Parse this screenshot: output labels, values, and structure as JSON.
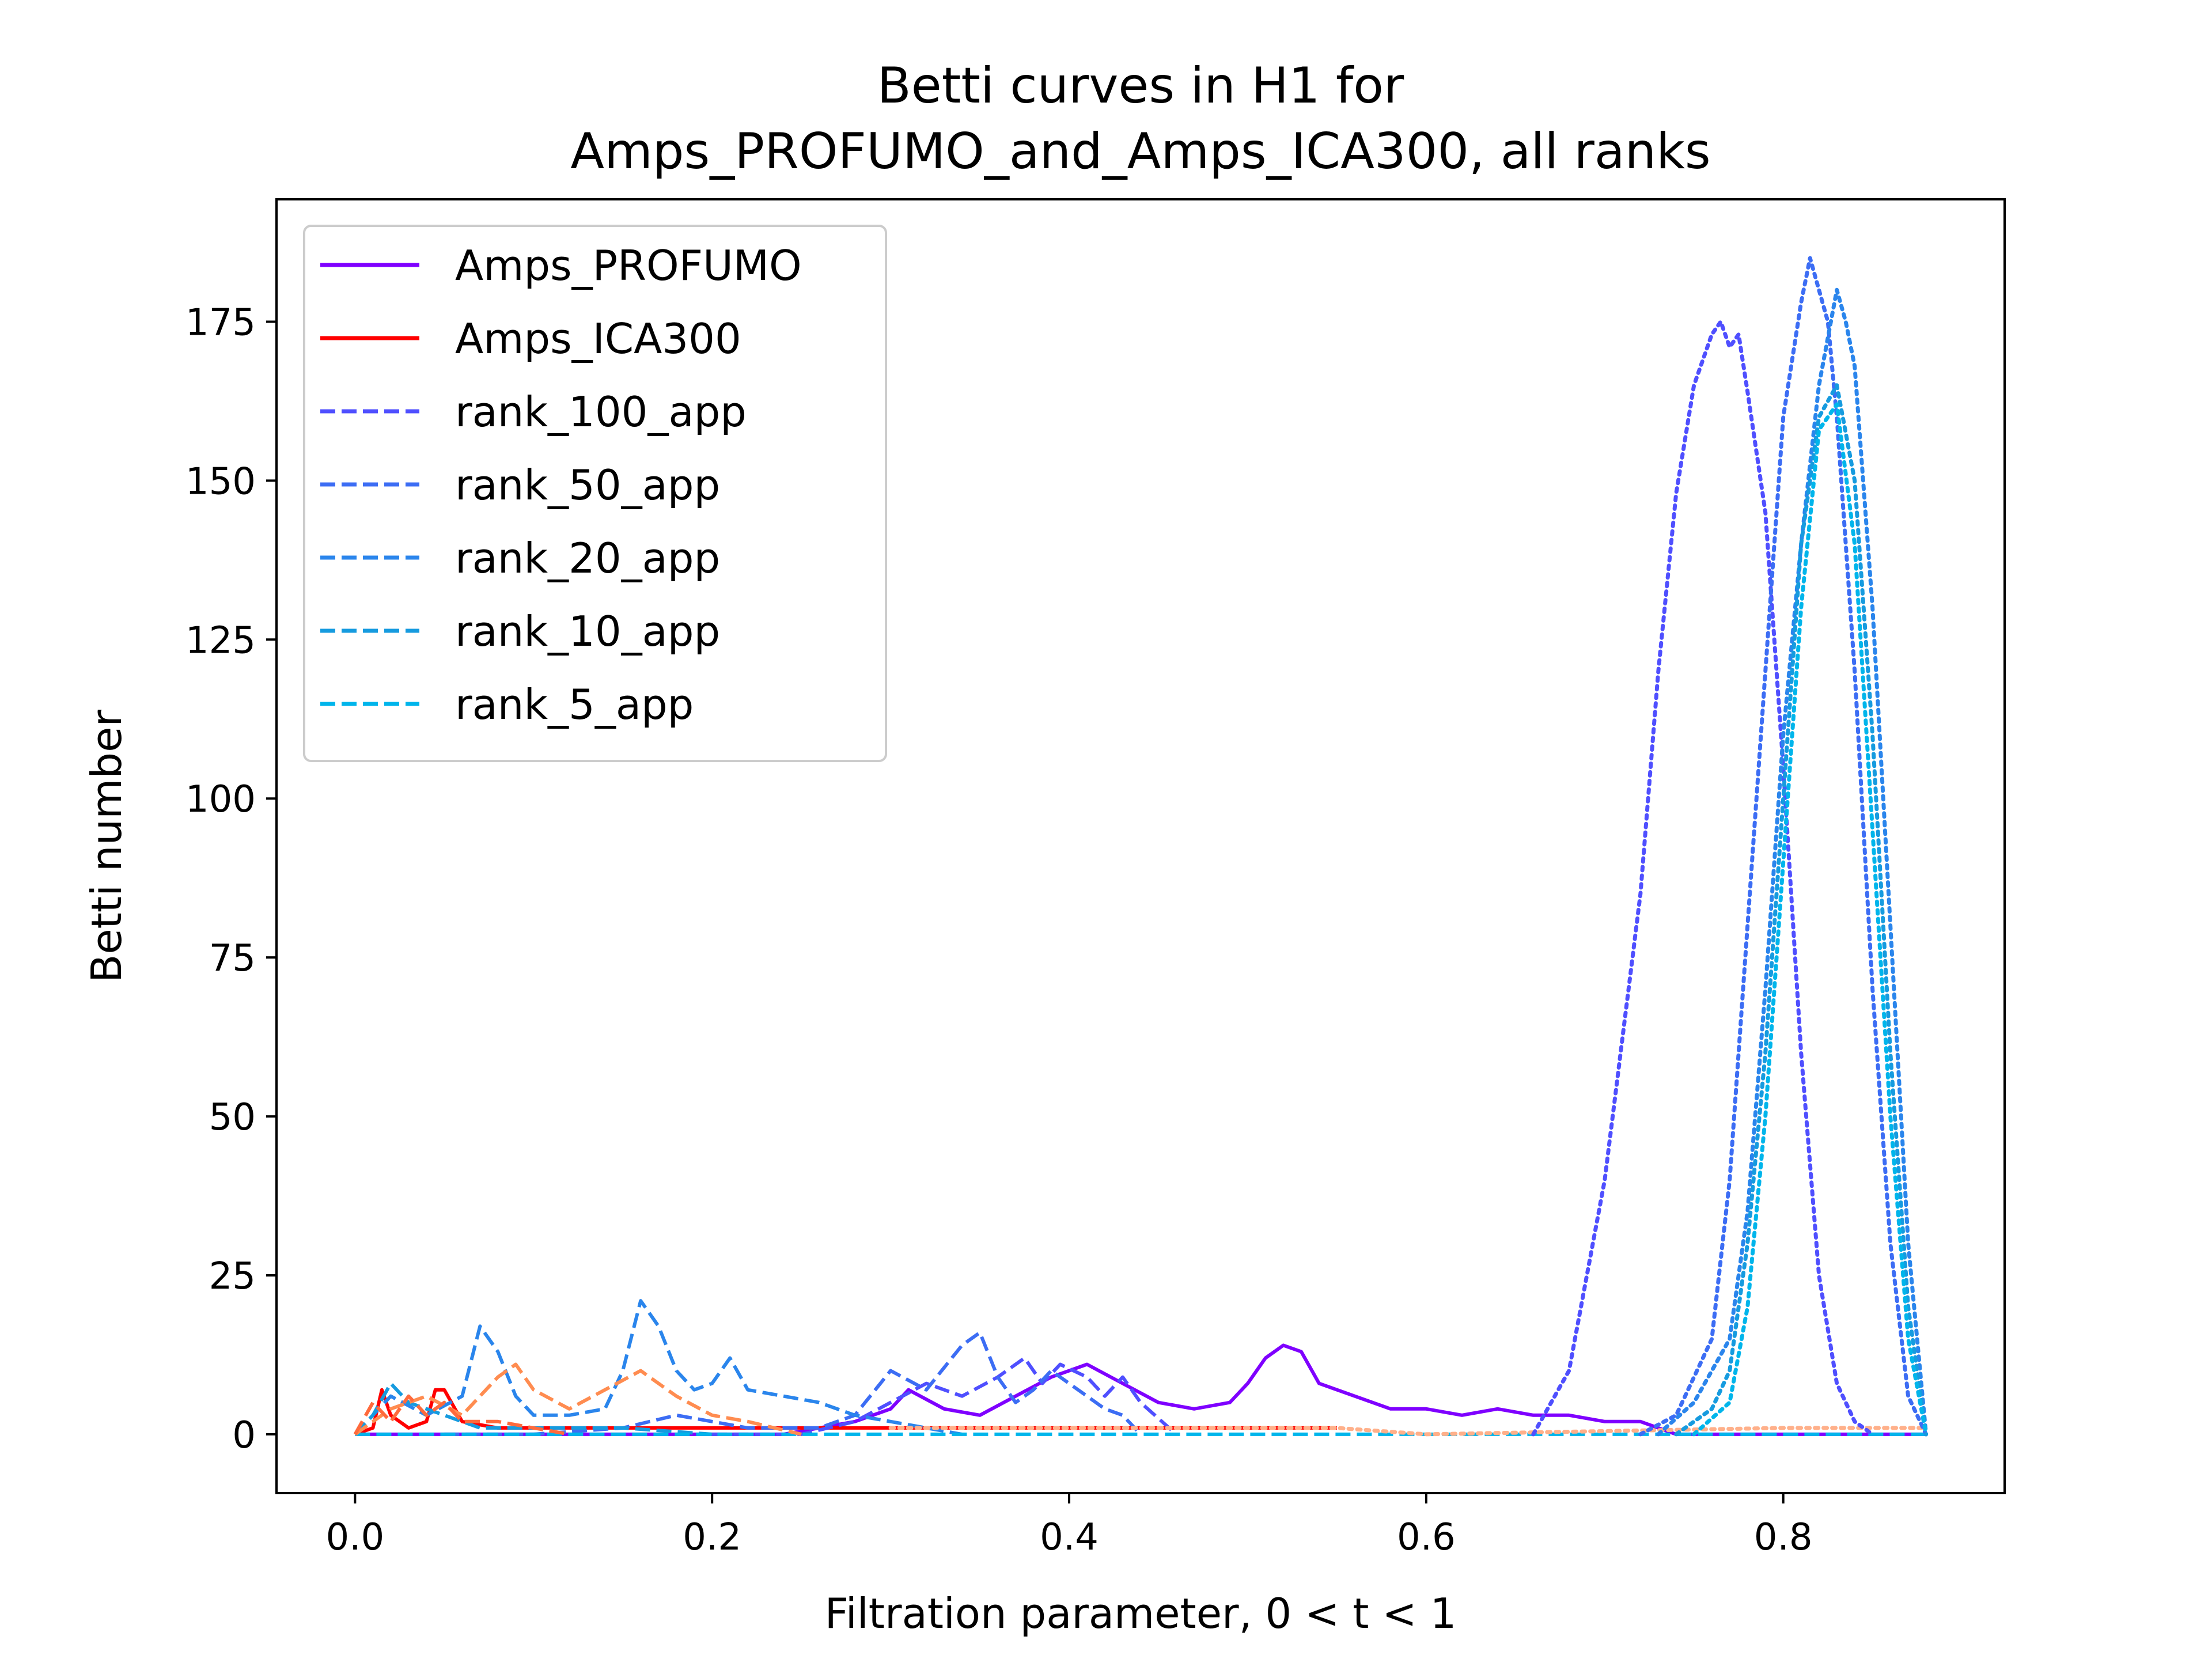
{
  "chart_data": {
    "type": "line",
    "title": "Betti curves in H1 for",
    "subtitle": "Amps_PROFUMO_and_Amps_ICA300, all ranks",
    "xlabel": "Filtration parameter, 0 < t < 1",
    "ylabel": "Betti number",
    "xlim": [
      -0.044,
      0.924
    ],
    "ylim": [
      -9.25,
      194.25
    ],
    "xticks": [
      0.0,
      0.2,
      0.4,
      0.6,
      0.8
    ],
    "xtick_labels": [
      "0.0",
      "0.2",
      "0.4",
      "0.6",
      "0.8"
    ],
    "yticks": [
      0,
      25,
      50,
      75,
      100,
      125,
      150,
      175
    ],
    "ytick_labels": [
      "0",
      "25",
      "50",
      "75",
      "100",
      "125",
      "150",
      "175"
    ],
    "grid": false,
    "legend_position": "top-left",
    "series": [
      {
        "name": "Amps_PROFUMO",
        "color": "#7f00ff",
        "style": "solid",
        "in_legend": true,
        "x": [
          0.0,
          0.05,
          0.1,
          0.15,
          0.2,
          0.24,
          0.26,
          0.28,
          0.3,
          0.31,
          0.33,
          0.35,
          0.37,
          0.39,
          0.41,
          0.43,
          0.45,
          0.47,
          0.49,
          0.5,
          0.51,
          0.52,
          0.53,
          0.54,
          0.56,
          0.58,
          0.6,
          0.62,
          0.64,
          0.66,
          0.68,
          0.7,
          0.72,
          0.73,
          0.74,
          0.76,
          0.8,
          0.85,
          0.88
        ],
        "y": [
          0,
          0,
          0,
          0,
          0,
          0,
          1,
          2,
          4,
          7,
          4,
          3,
          6,
          9,
          11,
          8,
          5,
          4,
          5,
          8,
          12,
          14,
          13,
          8,
          6,
          4,
          4,
          3,
          4,
          3,
          3,
          2,
          2,
          1,
          0,
          0,
          0,
          0,
          0
        ]
      },
      {
        "name": "Amps_ICA300",
        "color": "#ff0000",
        "style": "solid",
        "in_legend": true,
        "x": [
          0.0,
          0.01,
          0.015,
          0.02,
          0.03,
          0.04,
          0.045,
          0.05,
          0.06,
          0.08,
          0.1,
          0.15,
          0.2,
          0.25,
          0.3,
          0.4,
          0.5,
          0.55
        ],
        "y": [
          0,
          1,
          7,
          3,
          1,
          2,
          7,
          7,
          2,
          1,
          1,
          1,
          1,
          1,
          1,
          1,
          1,
          1
        ]
      },
      {
        "name": "rank_100_app",
        "color": "#4f4fff",
        "style": "dashed",
        "in_legend": true,
        "x": [
          0.2,
          0.25,
          0.28,
          0.3,
          0.32,
          0.34,
          0.36,
          0.375,
          0.385,
          0.395,
          0.41,
          0.42,
          0.43,
          0.44,
          0.46
        ],
        "y": [
          0,
          0,
          2,
          5,
          8,
          6,
          9,
          12,
          8,
          11,
          9,
          6,
          9,
          5,
          0
        ]
      },
      {
        "name": "rank_50_app",
        "color": "#3c6df4",
        "style": "dashed",
        "in_legend": true,
        "x": [
          0.05,
          0.1,
          0.15,
          0.18,
          0.2,
          0.22,
          0.24,
          0.26,
          0.28,
          0.3,
          0.32,
          0.34,
          0.35,
          0.36,
          0.37,
          0.38,
          0.39,
          0.4,
          0.41,
          0.42,
          0.43,
          0.44
        ],
        "y": [
          0,
          0,
          1,
          3,
          2,
          1,
          1,
          1,
          3,
          10,
          7,
          14,
          16,
          9,
          5,
          7,
          10,
          8,
          6,
          4,
          3,
          0
        ]
      },
      {
        "name": "rank_20_app",
        "color": "#2a85ec",
        "style": "dashed",
        "in_legend": true,
        "x": [
          0.0,
          0.02,
          0.04,
          0.06,
          0.07,
          0.08,
          0.09,
          0.1,
          0.12,
          0.14,
          0.15,
          0.16,
          0.17,
          0.18,
          0.19,
          0.2,
          0.21,
          0.22,
          0.24,
          0.26,
          0.28,
          0.3,
          0.32,
          0.34
        ],
        "y": [
          0,
          6,
          3,
          6,
          17,
          13,
          6,
          3,
          3,
          4,
          10,
          21,
          17,
          10,
          7,
          8,
          12,
          7,
          6,
          5,
          3,
          2,
          1,
          0
        ]
      },
      {
        "name": "rank_10_app",
        "color": "#169bdf",
        "style": "dashed",
        "in_legend": true,
        "x": [
          0.0,
          0.01,
          0.02,
          0.03,
          0.05,
          0.07,
          0.1,
          0.15,
          0.2
        ],
        "y": [
          0,
          3,
          8,
          5,
          3,
          1,
          1,
          1,
          0
        ]
      },
      {
        "name": "rank_5_app",
        "color": "#00b5eb",
        "style": "dashed",
        "in_legend": true,
        "x": [
          0.0,
          0.2,
          0.4,
          0.6,
          0.8,
          0.88
        ],
        "y": [
          0,
          0,
          0,
          0,
          0,
          0
        ]
      },
      {
        "name": "",
        "color": "#ff8c50",
        "style": "dashed",
        "in_legend": false,
        "x": [
          0.0,
          0.02,
          0.04,
          0.06,
          0.08,
          0.09,
          0.1,
          0.12,
          0.14,
          0.16,
          0.18,
          0.2,
          0.22,
          0.25
        ],
        "y": [
          0,
          4,
          6,
          3,
          9,
          11,
          7,
          4,
          7,
          10,
          6,
          3,
          2,
          0
        ]
      },
      {
        "name": "",
        "color": "#ff6a3c",
        "style": "dashed",
        "in_legend": false,
        "x": [
          0.0,
          0.01,
          0.02,
          0.03,
          0.04,
          0.05,
          0.06,
          0.08,
          0.1,
          0.12
        ],
        "y": [
          0,
          5,
          2,
          6,
          3,
          5,
          2,
          2,
          1,
          0
        ]
      },
      {
        "name": "",
        "color": "#ffb08a",
        "style": "dotted",
        "in_legend": false,
        "x": [
          0.3,
          0.4,
          0.5,
          0.55,
          0.6,
          0.8,
          0.88
        ],
        "y": [
          1,
          1,
          1,
          1,
          0,
          1,
          1
        ]
      },
      {
        "name": "",
        "color": "#4f4fff",
        "style": "dotted",
        "in_legend": false,
        "x": [
          0.66,
          0.68,
          0.7,
          0.72,
          0.73,
          0.74,
          0.75,
          0.76,
          0.765,
          0.77,
          0.775,
          0.78,
          0.79,
          0.8,
          0.81,
          0.82,
          0.83,
          0.84,
          0.85
        ],
        "y": [
          0,
          10,
          40,
          85,
          120,
          148,
          165,
          173,
          175,
          171,
          173,
          164,
          145,
          105,
          60,
          25,
          8,
          2,
          0
        ]
      },
      {
        "name": "",
        "color": "#3c6df4",
        "style": "dotted",
        "in_legend": false,
        "x": [
          0.72,
          0.74,
          0.76,
          0.77,
          0.78,
          0.79,
          0.8,
          0.81,
          0.815,
          0.82,
          0.825,
          0.83,
          0.84,
          0.85,
          0.86,
          0.87,
          0.88
        ],
        "y": [
          0,
          3,
          15,
          40,
          80,
          120,
          160,
          178,
          185,
          180,
          175,
          160,
          120,
          70,
          30,
          6,
          0
        ]
      },
      {
        "name": "",
        "color": "#2a85ec",
        "style": "dotted",
        "in_legend": false,
        "x": [
          0.73,
          0.75,
          0.77,
          0.78,
          0.79,
          0.8,
          0.81,
          0.82,
          0.83,
          0.835,
          0.84,
          0.85,
          0.86,
          0.87,
          0.88
        ],
        "y": [
          0,
          5,
          15,
          35,
          70,
          110,
          140,
          165,
          180,
          175,
          168,
          130,
          80,
          30,
          0
        ]
      },
      {
        "name": "",
        "color": "#169bdf",
        "style": "dotted",
        "in_legend": false,
        "x": [
          0.74,
          0.76,
          0.77,
          0.78,
          0.79,
          0.8,
          0.81,
          0.82,
          0.83,
          0.84,
          0.85,
          0.86,
          0.87,
          0.88
        ],
        "y": [
          0,
          4,
          10,
          30,
          60,
          100,
          140,
          160,
          165,
          150,
          110,
          60,
          20,
          0
        ]
      },
      {
        "name": "",
        "color": "#00b5eb",
        "style": "dotted",
        "in_legend": false,
        "x": [
          0.75,
          0.77,
          0.78,
          0.79,
          0.8,
          0.81,
          0.82,
          0.83,
          0.84,
          0.85,
          0.86,
          0.87,
          0.88
        ],
        "y": [
          0,
          5,
          20,
          50,
          90,
          130,
          158,
          162,
          140,
          95,
          50,
          15,
          0
        ]
      }
    ]
  }
}
